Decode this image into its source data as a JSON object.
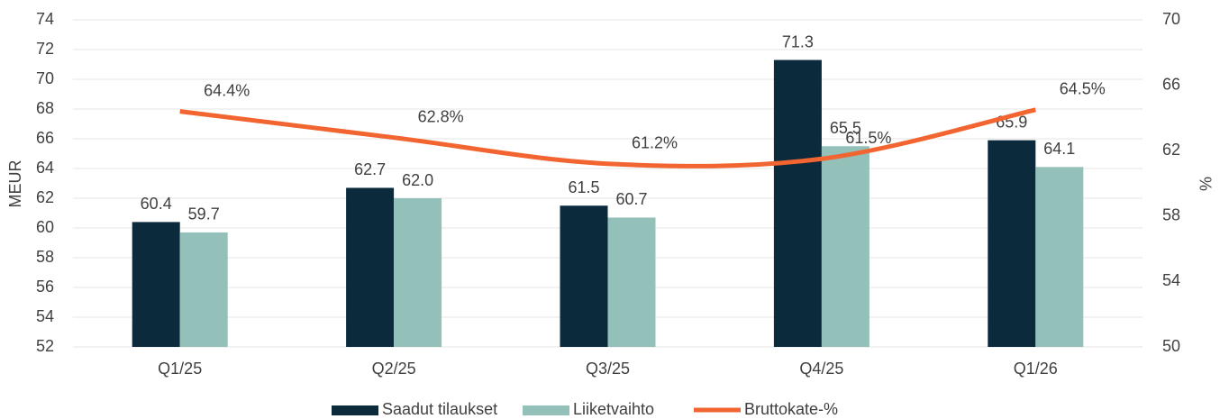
{
  "chart_data": {
    "type": "bar-line",
    "y_label": "MEUR",
    "y2_label": "%",
    "categories": [
      "Q1/25",
      "Q2/25",
      "Q3/25",
      "Q4/25",
      "Q1/26"
    ],
    "series": [
      {
        "name": "Saadut tilaukset",
        "type": "bar",
        "color": "#0b2a3c",
        "values": [
          60.4,
          62.7,
          61.5,
          71.3,
          65.9
        ],
        "value_labels": [
          "60.4",
          "62.7",
          "61.5",
          "71.3",
          "65.9"
        ]
      },
      {
        "name": "Liiketvaihto",
        "type": "bar",
        "color": "#93c0b8",
        "values": [
          59.7,
          62.0,
          60.7,
          65.5,
          64.1
        ],
        "value_labels": [
          "59.7",
          "62.0",
          "60.7",
          "65.5",
          "64.1"
        ]
      },
      {
        "name": "Bruttokate-%",
        "type": "line",
        "axis": "y2",
        "color": "#f26430",
        "values": [
          64.4,
          62.8,
          61.2,
          61.5,
          64.5
        ],
        "value_labels": [
          "64.4%",
          "62.8%",
          "61.2%",
          "61.5%",
          "64.5%"
        ]
      }
    ],
    "ylim": [
      52,
      74
    ],
    "yticks": [
      52,
      54,
      56,
      58,
      60,
      62,
      64,
      66,
      68,
      70,
      72,
      74
    ],
    "y2lim": [
      50,
      70
    ],
    "y2ticks": [
      50,
      54,
      58,
      62,
      66,
      70
    ],
    "grid": true,
    "legend": "bottom"
  }
}
